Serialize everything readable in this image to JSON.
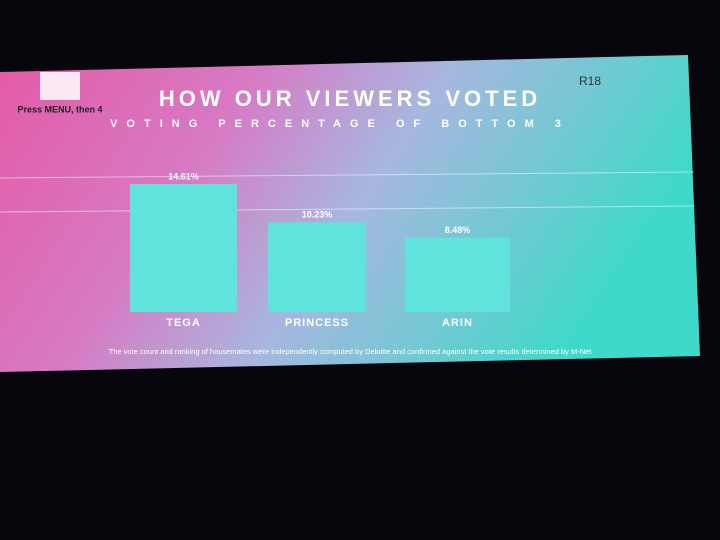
{
  "chart_data": {
    "type": "bar",
    "title": "HOW OUR VIEWERS VOTED",
    "subtitle": "VOTING PERCENTAGE OF BOTTOM 3",
    "categories": [
      "TEGA",
      "PRINCESS",
      "ARIN"
    ],
    "values": [
      14.61,
      10.23,
      8.48
    ],
    "value_labels": [
      "14.61%",
      "10.23%",
      "8.48%"
    ],
    "color": "#5fe3dc",
    "footnote": "The vote count and ranking of housemates were independently computed by Deloitte and confirmed against the vote results determined by M-Net",
    "badge": "R18",
    "prompt": "Press MENU, then 4"
  }
}
